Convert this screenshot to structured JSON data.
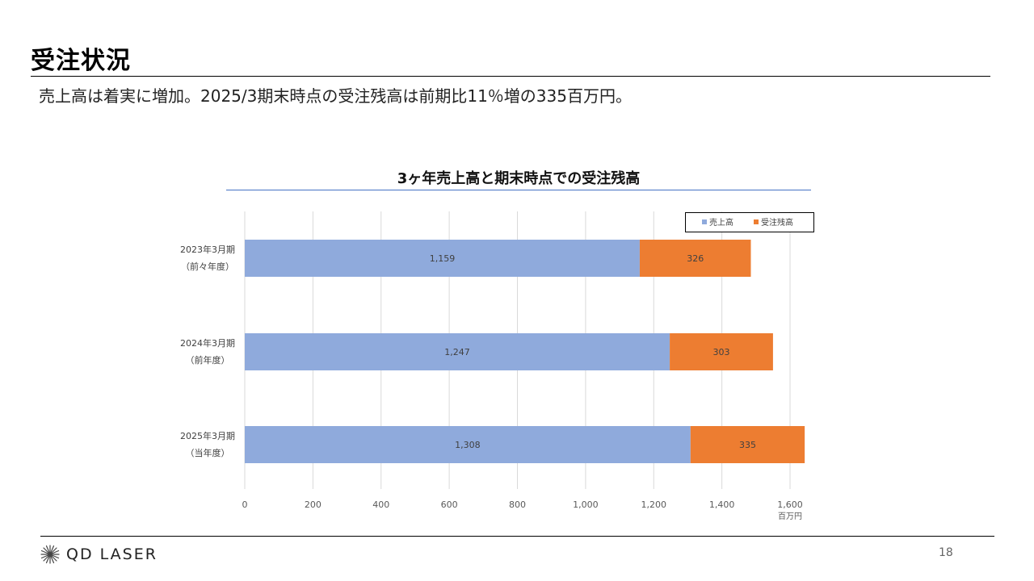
{
  "page": {
    "title": "受注状況",
    "subtitle": "売上高は着実に増加。2025/3期末時点の受注残高は前期比11％増の335百万円。",
    "page_number": "18"
  },
  "logo": {
    "text": "QD LASER",
    "icon": "starburst-icon"
  },
  "chart_data": {
    "type": "bar",
    "orientation": "horizontal",
    "stacked": true,
    "title": "3ヶ年売上高と期末時点での受注残高",
    "categories": [
      [
        "2023年3月期",
        "（前々年度）"
      ],
      [
        "2024年3月期",
        "（前年度）"
      ],
      [
        "2025年3月期",
        "（当年度）"
      ]
    ],
    "series": [
      {
        "name": "売上高",
        "values": [
          1159,
          1247,
          1308
        ],
        "labels": [
          "1,159",
          "1,247",
          "1,308"
        ],
        "color": "#8faadc"
      },
      {
        "name": "受注残高",
        "values": [
          326,
          303,
          335
        ],
        "labels": [
          "326",
          "303",
          "335"
        ],
        "color": "#ed7d31"
      }
    ],
    "xlim": [
      0,
      1600
    ],
    "xticks": [
      0,
      200,
      400,
      600,
      800,
      1000,
      1200,
      1400,
      1600
    ],
    "xtick_labels": [
      "0",
      "200",
      "400",
      "600",
      "800",
      "1,000",
      "1,200",
      "1,400",
      "1,600"
    ],
    "xunit": "百万円",
    "grid": true,
    "legend_position": "top-right"
  }
}
